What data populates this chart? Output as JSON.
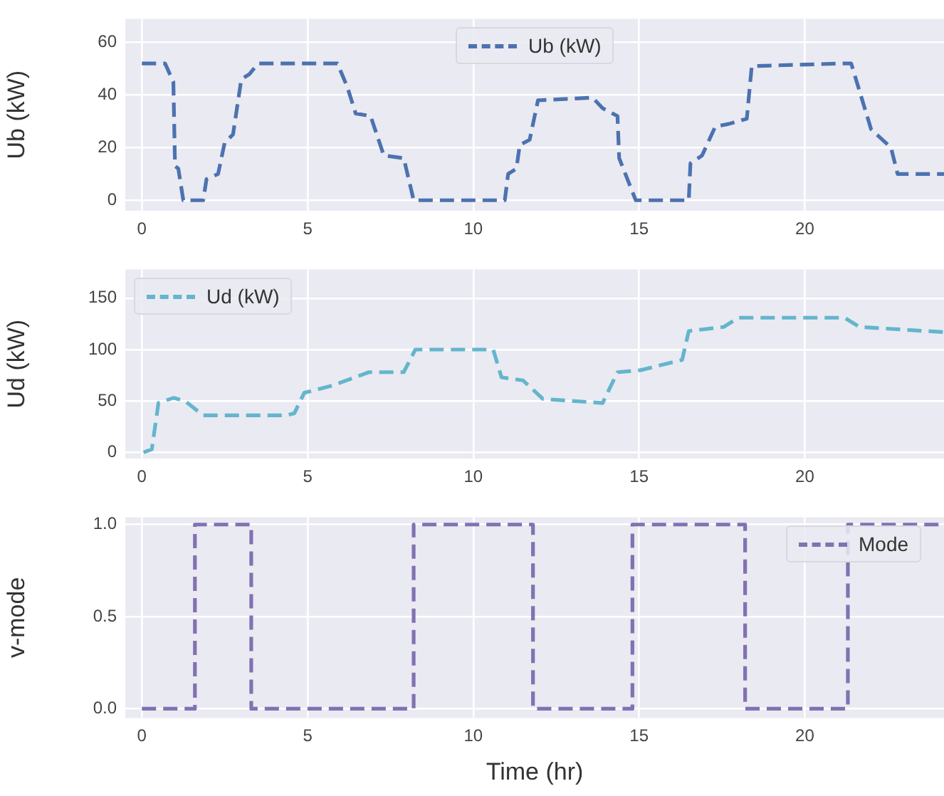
{
  "chart_data": [
    {
      "type": "line",
      "ylabel": "Ub (kW)",
      "xlim": [
        -0.5,
        24.2
      ],
      "xticks": [
        0,
        5,
        10,
        15,
        20
      ],
      "ylim": [
        -4,
        69
      ],
      "yticks": [
        0,
        20,
        40,
        60
      ],
      "grid": true,
      "legend": "top",
      "line_style": "dashed",
      "marker": "none",
      "series": [
        {
          "name": "Ub (kW)",
          "color": "#4c72b0",
          "x": [
            0,
            0.7,
            0.95,
            1.0,
            1.1,
            1.25,
            1.85,
            1.95,
            2.3,
            2.5,
            2.75,
            3.0,
            3.25,
            3.5,
            5.9,
            6.2,
            6.45,
            6.9,
            7.3,
            7.9,
            8.2,
            10.95,
            11.05,
            11.3,
            11.4,
            11.7,
            11.95,
            13.6,
            13.9,
            14.35,
            14.4,
            14.9,
            16.5,
            16.55,
            16.9,
            17.3,
            17.7,
            18.25,
            18.4,
            21.1,
            21.4,
            22.0,
            22.6,
            22.8,
            24.2
          ],
          "values": [
            52,
            52,
            45,
            13,
            12,
            0,
            0,
            8,
            10,
            22,
            25,
            46,
            48,
            52,
            52,
            43,
            33,
            32,
            17,
            16,
            0,
            0,
            10,
            12,
            21,
            23,
            38,
            39,
            35,
            32,
            16,
            0,
            0,
            14,
            17,
            28,
            29,
            31,
            51,
            52,
            52,
            27,
            20,
            10,
            10
          ]
        }
      ]
    },
    {
      "type": "line",
      "ylabel": "Ud (kW)",
      "xlim": [
        -0.5,
        24.2
      ],
      "xticks": [
        0,
        5,
        10,
        15,
        20
      ],
      "ylim": [
        -6,
        178
      ],
      "yticks": [
        0,
        50,
        100,
        150
      ],
      "grid": true,
      "legend": "top left",
      "line_style": "dashed",
      "marker": "none",
      "series": [
        {
          "name": "Ud (kW)",
          "color": "#64b5cd",
          "x": [
            0.05,
            0.3,
            0.5,
            0.95,
            1.3,
            1.85,
            4.35,
            4.6,
            4.9,
            5.75,
            6.85,
            7.9,
            8.25,
            10.6,
            10.85,
            11.5,
            12.1,
            13.9,
            14.35,
            15.05,
            16.3,
            16.5,
            17.55,
            18.0,
            21.2,
            21.65,
            24.2
          ],
          "values": [
            0,
            3,
            48,
            53,
            50,
            36,
            36,
            38,
            58,
            65,
            78,
            78,
            100,
            100,
            73,
            70,
            52,
            48,
            78,
            80,
            90,
            118,
            122,
            131,
            131,
            122,
            117
          ]
        }
      ]
    },
    {
      "type": "step",
      "xlabel": "Time (hr)",
      "ylabel": "v-mode",
      "xlim": [
        -0.5,
        24.2
      ],
      "xticks": [
        0,
        5,
        10,
        15,
        20
      ],
      "ylim": [
        -0.05,
        1.04
      ],
      "yticks": [
        {
          "value": 0,
          "label": "0.0"
        },
        0.5,
        {
          "value": 1,
          "label": "1.0"
        }
      ],
      "grid": true,
      "legend": "top right",
      "line_style": "dashed",
      "marker": "none",
      "series": [
        {
          "name": "Mode",
          "color": "#8172b3",
          "x": [
            0,
            1.6,
            3.3,
            8.2,
            11.8,
            14.8,
            18.2,
            21.3,
            24.2
          ],
          "values": [
            0,
            1,
            0,
            1,
            0,
            1,
            0,
            1,
            1
          ]
        }
      ]
    }
  ]
}
